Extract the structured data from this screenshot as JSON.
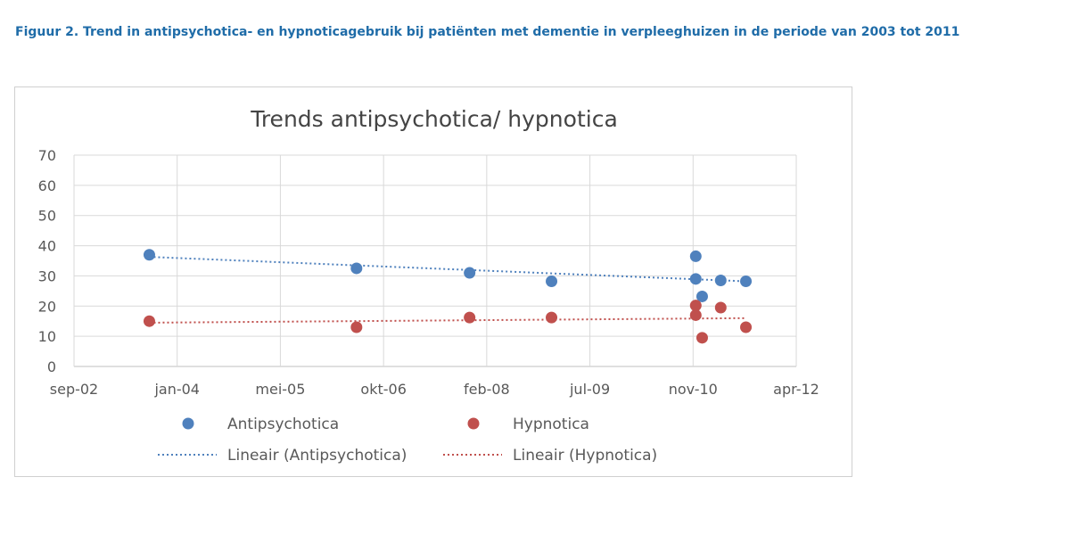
{
  "figure": {
    "caption": "Figuur 2.  Trend in antipsychotica- en hypnoticagebruik bij patiënten met dementie in verpleeghuizen in de periode van 2003 tot 2011"
  },
  "chart_data": {
    "type": "scatter",
    "title": "Trends antipsychotica/ hypnotica",
    "xlabel": "",
    "ylabel": "",
    "ylim": [
      0,
      70
    ],
    "yticks": [
      "0",
      "10",
      "20",
      "30",
      "40",
      "50",
      "60",
      "70"
    ],
    "xlim": [
      "2002-09-01",
      "2012-04-01"
    ],
    "xticks": [
      "sep-02",
      "jan-04",
      "mei-05",
      "okt-06",
      "feb-08",
      "jul-09",
      "nov-10",
      "apr-12"
    ],
    "grid": true,
    "legend_position": "bottom",
    "series": [
      {
        "name": "Antipsychotica",
        "color": "#4f81bd",
        "points": [
          {
            "x": "2003-09-01",
            "y": 37
          },
          {
            "x": "2006-06-01",
            "y": 32.5
          },
          {
            "x": "2007-12-01",
            "y": 31
          },
          {
            "x": "2009-01-01",
            "y": 28.2
          },
          {
            "x": "2010-12-01",
            "y": 36.5
          },
          {
            "x": "2010-12-01",
            "y": 29
          },
          {
            "x": "2011-01-01",
            "y": 23.2
          },
          {
            "x": "2011-04-01",
            "y": 28.5
          },
          {
            "x": "2011-08-01",
            "y": 28.2
          }
        ],
        "trendline": {
          "name": "Lineair (Antipsychotica)",
          "from": {
            "x": "2003-09-01",
            "y": 36.3
          },
          "to": {
            "x": "2011-08-01",
            "y": 28.2
          }
        }
      },
      {
        "name": "Hypnotica",
        "color": "#c0504d",
        "points": [
          {
            "x": "2003-09-01",
            "y": 15
          },
          {
            "x": "2006-06-01",
            "y": 13
          },
          {
            "x": "2007-12-01",
            "y": 16.2
          },
          {
            "x": "2009-01-01",
            "y": 16.2
          },
          {
            "x": "2010-12-01",
            "y": 20.2
          },
          {
            "x": "2010-12-01",
            "y": 17
          },
          {
            "x": "2011-01-01",
            "y": 9.5
          },
          {
            "x": "2011-04-01",
            "y": 19.5
          },
          {
            "x": "2011-08-01",
            "y": 13
          }
        ],
        "trendline": {
          "name": "Lineair (Hypnotica)",
          "from": {
            "x": "2003-09-01",
            "y": 14.5
          },
          "to": {
            "x": "2011-08-01",
            "y": 16
          }
        }
      }
    ]
  }
}
